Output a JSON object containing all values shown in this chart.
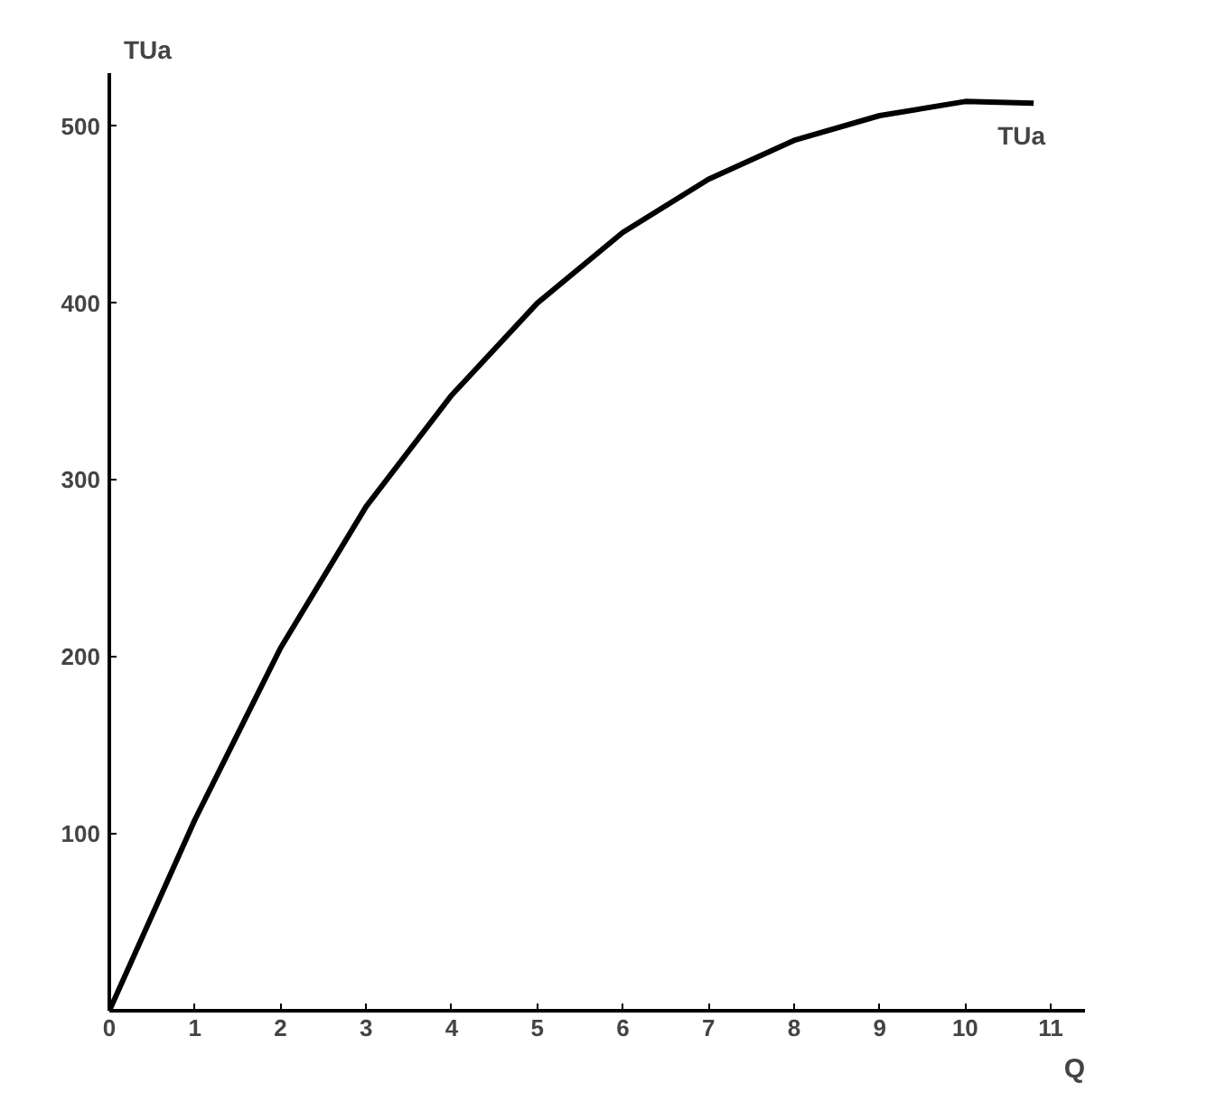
{
  "chart_data": {
    "type": "line",
    "xlabel": "Q",
    "ylabel": "TUa",
    "x": [
      0,
      1,
      2,
      3,
      4,
      5,
      6,
      7,
      8,
      9,
      10,
      10.8
    ],
    "series": [
      {
        "name": "TUa",
        "color": "#000000",
        "values": [
          0,
          108,
          205,
          285,
          348,
          400,
          440,
          470,
          492,
          506,
          514,
          513
        ]
      }
    ],
    "xlim": [
      0,
      11.4
    ],
    "ylim": [
      0,
      530
    ],
    "xticks": [
      0,
      1,
      2,
      3,
      4,
      5,
      6,
      7,
      8,
      9,
      10,
      11
    ],
    "yticks": [
      {
        "value": 0,
        "label": null
      },
      100,
      200,
      300,
      400,
      500
    ],
    "grid": false,
    "legend": false,
    "marker": "none",
    "line_style": "solid"
  }
}
